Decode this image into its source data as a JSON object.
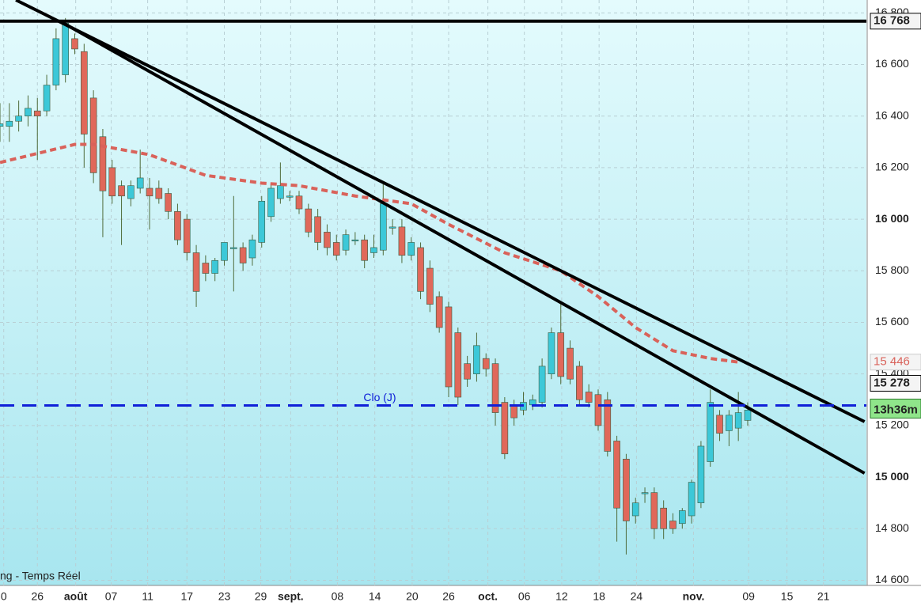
{
  "chart_data": {
    "type": "candlestick",
    "source_label": "ng - Temps Réel",
    "xlim": [
      0,
      92.7
    ],
    "ylim": [
      14580,
      16850
    ],
    "xticks": [
      {
        "value": 0.4,
        "label": "0"
      },
      {
        "value": 4,
        "label": "26"
      },
      {
        "value": 8.1,
        "label": "août"
      },
      {
        "value": 11.9,
        "label": "07"
      },
      {
        "value": 15.8,
        "label": "11"
      },
      {
        "value": 20,
        "label": "17"
      },
      {
        "value": 24,
        "label": "23"
      },
      {
        "value": 27.9,
        "label": "29"
      },
      {
        "value": 31.1,
        "label": "sept."
      },
      {
        "value": 36.1,
        "label": "08"
      },
      {
        "value": 40.1,
        "label": "14"
      },
      {
        "value": 44.1,
        "label": "20"
      },
      {
        "value": 48,
        "label": "26"
      },
      {
        "value": 52.2,
        "label": "oct."
      },
      {
        "value": 56.1,
        "label": "06"
      },
      {
        "value": 60.1,
        "label": "12"
      },
      {
        "value": 64.1,
        "label": "18"
      },
      {
        "value": 68.1,
        "label": "24"
      },
      {
        "value": 74.2,
        "label": "nov."
      },
      {
        "value": 80.1,
        "label": "09"
      },
      {
        "value": 84.2,
        "label": "15"
      },
      {
        "value": 88.1,
        "label": "21"
      }
    ],
    "month_ticks": [
      "août",
      "sept.",
      "oct.",
      "nov."
    ],
    "yticks": [
      {
        "value": 14600,
        "label": "14 600"
      },
      {
        "value": 14800,
        "label": "14 800"
      },
      {
        "value": 15000,
        "label": "15 000"
      },
      {
        "value": 15200,
        "label": "15 200"
      },
      {
        "value": 15400,
        "label": "15 400"
      },
      {
        "value": 15600,
        "label": "15 600"
      },
      {
        "value": 15800,
        "label": "15 800"
      },
      {
        "value": 16000,
        "label": "16 000"
      },
      {
        "value": 16200,
        "label": "16 200"
      },
      {
        "value": 16400,
        "label": "16 400"
      },
      {
        "value": 16600,
        "label": "16 600"
      },
      {
        "value": 16800,
        "label": "16 800"
      }
    ],
    "grid": true,
    "up_color": "#3cc8d8",
    "down_color": "#e0685a",
    "wick_color": "#4f6b3a",
    "open": [
      16360,
      16360,
      16380,
      16400,
      16420,
      16420,
      16520,
      16560,
      16700,
      16650,
      16470,
      16320,
      16200,
      16130,
      16080,
      16120,
      16120,
      16120,
      16100,
      16030,
      16000,
      15870,
      15830,
      15790,
      15840,
      15890,
      15890,
      15850,
      15910,
      16010,
      16080,
      16090,
      16090,
      16040,
      16010,
      15950,
      15910,
      15880,
      15920,
      15920,
      15870,
      15880,
      15970,
      15970,
      15860,
      15890,
      15810,
      15700,
      15660,
      15560,
      15440,
      15400,
      15460,
      15440,
      15290,
      15280,
      15260,
      15280,
      15290,
      15400,
      15560,
      15500,
      15430,
      15330,
      15320,
      15300,
      15140,
      15070,
      14850,
      14940,
      14940,
      14880,
      14830,
      14820,
      14850,
      14900,
      15060,
      15240,
      15180,
      15190,
      15220
    ],
    "high": [
      16450,
      16450,
      16460,
      16480,
      16470,
      16560,
      16740,
      16780,
      16720,
      16680,
      16500,
      16350,
      16230,
      16150,
      16150,
      16270,
      16160,
      16150,
      16120,
      16060,
      16020,
      15900,
      15860,
      15850,
      15900,
      16090,
      15910,
      15940,
      16090,
      16140,
      16220,
      16110,
      16110,
      16060,
      16040,
      15980,
      15940,
      15960,
      15950,
      15940,
      15940,
      16140,
      16000,
      16000,
      15930,
      15910,
      15840,
      15720,
      15680,
      15580,
      15470,
      15560,
      15480,
      15460,
      15310,
      15300,
      15330,
      15320,
      15460,
      15580,
      15680,
      15530,
      15450,
      15360,
      15340,
      15330,
      15160,
      15090,
      14920,
      14960,
      14960,
      14910,
      14860,
      14880,
      14990,
      15140,
      15340,
      15260,
      15260,
      15330,
      15290
    ],
    "low": [
      16300,
      16300,
      16340,
      16360,
      16230,
      16400,
      16500,
      16530,
      16640,
      16200,
      16140,
      15930,
      16060,
      15900,
      16050,
      16100,
      15960,
      16060,
      16000,
      15900,
      15840,
      15660,
      15760,
      15760,
      15820,
      15720,
      15800,
      15820,
      15890,
      15990,
      16060,
      16070,
      16020,
      15930,
      15880,
      15860,
      15840,
      15860,
      15900,
      15810,
      15850,
      15860,
      15940,
      15830,
      15840,
      15690,
      15640,
      15560,
      15310,
      15280,
      15350,
      15370,
      15390,
      15200,
      15070,
      15200,
      15240,
      15260,
      15270,
      15380,
      15360,
      15360,
      15280,
      15270,
      15180,
      15080,
      14750,
      14700,
      14820,
      14900,
      14760,
      14760,
      14780,
      14800,
      14820,
      14880,
      15040,
      15140,
      15120,
      15140,
      15200
    ],
    "close": [
      16370,
      16380,
      16400,
      16430,
      16400,
      16520,
      16700,
      16760,
      16660,
      16330,
      16180,
      16110,
      16090,
      16090,
      16130,
      16160,
      16090,
      16080,
      16030,
      15920,
      15870,
      15720,
      15790,
      15840,
      15910,
      15890,
      15830,
      15920,
      16070,
      16120,
      16130,
      16090,
      16040,
      15950,
      15910,
      15890,
      15860,
      15940,
      15920,
      15840,
      15890,
      16060,
      15970,
      15860,
      15910,
      15720,
      15670,
      15580,
      15350,
      15310,
      15380,
      15510,
      15420,
      15250,
      15090,
      15230,
      15290,
      15300,
      15430,
      15560,
      15390,
      15380,
      15300,
      15290,
      15200,
      15100,
      14880,
      14830,
      14900,
      14940,
      14800,
      14800,
      14800,
      14870,
      14980,
      15120,
      15290,
      15170,
      15240,
      15250,
      15260
    ],
    "moving_average": {
      "color": "#d9625a",
      "x": [
        0,
        8,
        10,
        16,
        22,
        28,
        32,
        38,
        44,
        48,
        54,
        60,
        64,
        68,
        72,
        76,
        79
      ],
      "values": [
        16220,
        16290,
        16290,
        16250,
        16170,
        16140,
        16130,
        16090,
        16060,
        15980,
        15870,
        15800,
        15700,
        15580,
        15490,
        15460,
        15446
      ]
    },
    "trendlines": [
      {
        "x": [
          1.7,
          92.5
        ],
        "values": [
          16850,
          15215
        ]
      },
      {
        "x": [
          6.9,
          92.5
        ],
        "values": [
          16758,
          15015
        ]
      }
    ],
    "levels": [
      {
        "value": 16768,
        "label": "16 768",
        "color": "#000000",
        "style": "solid"
      },
      {
        "value": 15278,
        "label": "15 278",
        "color": "#1020d8",
        "style": "dashed",
        "name": "Clo (J)",
        "time": "13h36m"
      }
    ],
    "ma_tag": {
      "value": 15446,
      "label": "15 446"
    }
  }
}
